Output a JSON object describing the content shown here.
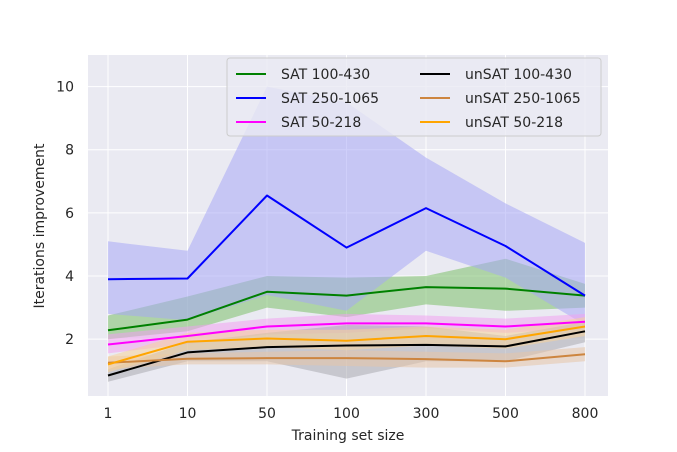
{
  "chart_data": {
    "type": "line",
    "title": "",
    "xlabel": "Training set size",
    "ylabel": "Iterations improvement",
    "x_categories": [
      "1",
      "10",
      "50",
      "100",
      "300",
      "500",
      "800"
    ],
    "ylim": [
      0.2,
      11.0
    ],
    "yticks": [
      2,
      4,
      6,
      8,
      10
    ],
    "grid": true,
    "legend_position": "top-right",
    "legend_columns": 2,
    "series": [
      {
        "name": "SAT 100-430",
        "color": "#008000",
        "fill": "#7bbf6a",
        "values": [
          2.28,
          2.62,
          3.5,
          3.38,
          3.65,
          3.6,
          3.38
        ],
        "lower": [
          2.0,
          2.25,
          3.0,
          2.7,
          3.1,
          2.9,
          3.0
        ],
        "upper": [
          2.75,
          3.35,
          4.0,
          3.95,
          4.0,
          4.55,
          3.75
        ]
      },
      {
        "name": "SAT 250-1065",
        "color": "#0000ff",
        "fill": "#a8a8f5",
        "values": [
          3.9,
          3.92,
          6.55,
          4.9,
          6.15,
          4.95,
          3.38
        ],
        "lower": [
          2.8,
          2.6,
          3.4,
          2.9,
          4.8,
          3.95,
          2.45
        ],
        "upper": [
          5.1,
          4.8,
          10.0,
          9.5,
          7.75,
          6.3,
          5.05
        ]
      },
      {
        "name": "SAT 50-218",
        "color": "#ff00ff",
        "fill": "#f0a3f0",
        "values": [
          1.83,
          2.1,
          2.4,
          2.5,
          2.5,
          2.4,
          2.55
        ],
        "lower": [
          1.55,
          1.85,
          2.15,
          2.2,
          2.35,
          2.2,
          2.35
        ],
        "upper": [
          2.15,
          2.4,
          2.65,
          2.8,
          2.75,
          2.65,
          2.8
        ]
      },
      {
        "name": "unSAT 100-430",
        "color": "#000000",
        "fill": "#a9a9b0",
        "values": [
          0.85,
          1.58,
          1.75,
          1.8,
          1.82,
          1.77,
          2.25
        ],
        "lower": [
          0.65,
          1.3,
          1.3,
          0.75,
          1.3,
          1.3,
          1.9
        ],
        "upper": [
          1.05,
          1.9,
          2.2,
          2.45,
          2.4,
          2.1,
          2.55
        ]
      },
      {
        "name": "unSAT 250-1065",
        "color": "#cd853f",
        "fill": "#e6c4a8",
        "values": [
          1.25,
          1.38,
          1.4,
          1.4,
          1.37,
          1.3,
          1.52
        ],
        "lower": [
          1.05,
          1.2,
          1.2,
          1.15,
          1.1,
          1.1,
          1.3
        ],
        "upper": [
          1.45,
          1.55,
          1.6,
          1.65,
          1.6,
          1.55,
          1.75
        ]
      },
      {
        "name": "unSAT 50-218",
        "color": "#ffa500",
        "fill": "#f5d29a",
        "values": [
          1.2,
          1.92,
          2.02,
          1.95,
          2.1,
          2.0,
          2.4
        ],
        "lower": [
          0.95,
          1.65,
          1.75,
          1.65,
          1.8,
          1.7,
          2.1
        ],
        "upper": [
          1.45,
          2.2,
          2.3,
          2.3,
          2.4,
          2.3,
          2.7
        ]
      }
    ]
  }
}
